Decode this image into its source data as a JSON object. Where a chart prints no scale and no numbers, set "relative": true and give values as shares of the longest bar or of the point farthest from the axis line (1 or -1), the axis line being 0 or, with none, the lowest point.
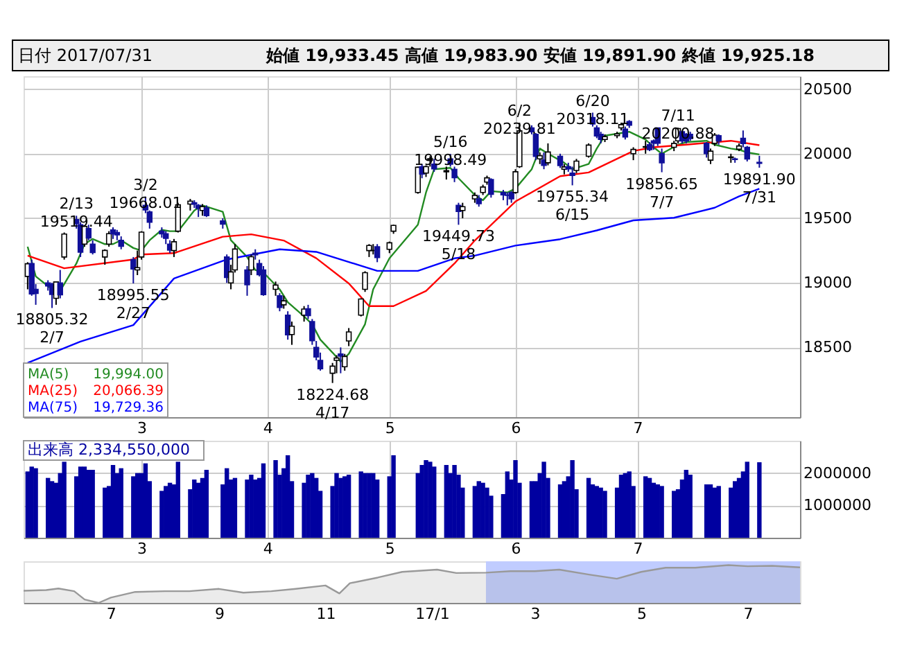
{
  "chart_data": [
    {
      "type": "candlestick",
      "title": "日付 2017/07/31",
      "subtitle": "始値 19,933.45 高値 19,983.90 安値 19,891.90 終値 19,925.18",
      "series": [
        {
          "type": "line",
          "name": "MA(5)",
          "color": "#228b22",
          "x": [
            "2017-02-01",
            "2017-02-03",
            "2017-02-07",
            "2017-02-09",
            "2017-02-13",
            "2017-02-15",
            "2017-02-17",
            "2017-02-20",
            "2017-02-22",
            "2017-02-24",
            "2017-02-27",
            "2017-03-01",
            "2017-03-03",
            "2017-03-06",
            "2017-03-08",
            "2017-03-10",
            "2017-03-14",
            "2017-03-16",
            "2017-03-21",
            "2017-03-23",
            "2017-03-27",
            "2017-03-29",
            "2017-03-31",
            "2017-04-04",
            "2017-04-06",
            "2017-04-10",
            "2017-04-12",
            "2017-04-14",
            "2017-04-17",
            "2017-04-19",
            "2017-04-21",
            "2017-04-25",
            "2017-04-27",
            "2017-05-01",
            "2017-05-08",
            "2017-05-10",
            "2017-05-12",
            "2017-05-16",
            "2017-05-18",
            "2017-05-22",
            "2017-05-24",
            "2017-05-26",
            "2017-05-30",
            "2017-06-01",
            "2017-06-05",
            "2017-06-07",
            "2017-06-09",
            "2017-06-13",
            "2017-06-15",
            "2017-06-19",
            "2017-06-21",
            "2017-06-23",
            "2017-06-27",
            "2017-06-29",
            "2017-07-03",
            "2017-07-05",
            "2017-07-07",
            "2017-07-11",
            "2017-07-13",
            "2017-07-18",
            "2017-07-20",
            "2017-07-24",
            "2017-07-26",
            "2017-07-28",
            "2017-07-31"
          ],
          "values": [
            19280,
            19050,
            18950,
            18937,
            19150,
            19300,
            19340,
            19300,
            19300,
            19330,
            19270,
            19250,
            19330,
            19410,
            19400,
            19400,
            19560,
            19600,
            19550,
            19330,
            19200,
            19100,
            19080,
            18950,
            18850,
            18740,
            18680,
            18560,
            18460,
            18390,
            18450,
            18680,
            18950,
            19190,
            19450,
            19700,
            19880,
            19890,
            19810,
            19680,
            19640,
            19710,
            19700,
            19730,
            19880,
            20040,
            20000,
            19930,
            19880,
            19920,
            20040,
            20140,
            20160,
            20170,
            20110,
            20050,
            20000,
            20070,
            20090,
            20100,
            20070,
            20040,
            20030,
            20010,
            19994
          ]
        },
        {
          "type": "line",
          "name": "MA(25)",
          "color": "#ff0000",
          "x": [
            "2017-02-01",
            "2017-02-10",
            "2017-02-27",
            "2017-03-01",
            "2017-03-09",
            "2017-03-21",
            "2017-03-28",
            "2017-04-05",
            "2017-04-13",
            "2017-04-21",
            "2017-04-26",
            "2017-05-02",
            "2017-05-10",
            "2017-05-17",
            "2017-05-22",
            "2017-06-01",
            "2017-06-12",
            "2017-06-19",
            "2017-06-30",
            "2017-07-05",
            "2017-07-13",
            "2017-07-24",
            "2017-07-31"
          ],
          "values": [
            19211,
            19113,
            19181,
            19220,
            19230,
            19357,
            19376,
            19328,
            19191,
            18996,
            18820,
            18820,
            18937,
            19150,
            19328,
            19630,
            19826,
            19855,
            20021,
            20050,
            20070,
            20100,
            20066.39
          ]
        },
        {
          "type": "line",
          "name": "MA(75)",
          "color": "#0000ff",
          "x": [
            "2017-02-01",
            "2017-02-14",
            "2017-02-27",
            "2017-03-09",
            "2017-03-22",
            "2017-04-04",
            "2017-04-13",
            "2017-04-28",
            "2017-05-08",
            "2017-05-17",
            "2017-05-22",
            "2017-06-01",
            "2017-06-12",
            "2017-06-21",
            "2017-06-30",
            "2017-07-10",
            "2017-07-20",
            "2017-07-26",
            "2017-07-31"
          ],
          "values": [
            18380,
            18546,
            18673,
            19034,
            19181,
            19260,
            19240,
            19093,
            19093,
            19190,
            19211,
            19289,
            19338,
            19406,
            19484,
            19504,
            19582,
            19670,
            19729.36
          ]
        },
        {
          "type": "candlestick",
          "colors": [
            "#ffffff",
            "#10109a",
            "#10109a",
            "#10109a",
            "#10109a",
            "#ffffff",
            "#10109a",
            "#ffffff",
            "#10109a",
            "#10109a",
            "#ffffff",
            "#10109a",
            "#10109a",
            "#ffffff",
            "#ffffff",
            "#10109a",
            "#10109a",
            "#10109a",
            "#10109a",
            "#ffffff",
            "#ffffff",
            "#10109a",
            "#10109a",
            "#10109a",
            "#10109a",
            "#10109a",
            "#ffffff",
            "#ffffff",
            "#ffffff",
            "#10109a",
            "#10109a",
            "#ffffff",
            "#10109a",
            "#10109a",
            "#10109a",
            "#ffffff",
            "#ffffff",
            "#10109a",
            "#ffffff",
            "#10109a",
            "#10109a",
            "#10109a",
            "#ffffff",
            "#10109a",
            "#ffffff",
            "#10109a",
            "#ffffff",
            "#ffffff",
            "#10109a",
            "#10109a",
            "#10109a",
            "#10109a",
            "#ffffff",
            "#ffffff",
            "#10109a",
            "#ffffff",
            "#ffffff",
            "#ffffff",
            "#ffffff",
            "#ffffff",
            "#ffffff",
            "#10109a",
            "#ffffff",
            "#ffffff",
            "#ffffff",
            "#10109a",
            "#ffffff",
            "#ffffff",
            "#10109a",
            "#ffffff",
            "#10109a",
            "#10109a",
            "#10109a",
            "#ffffff",
            "#ffffff",
            "#10109a",
            "#ffffff",
            "#ffffff",
            "#10109a",
            "#10109a",
            "#10109a",
            "#10109a",
            "#ffffff",
            "#ffffff",
            "#10109a",
            "#10109a",
            "#ffffff",
            "#10109a",
            "#ffffff",
            "#10109a",
            "#ffffff",
            "#10109a",
            "#10109a",
            "#ffffff",
            "#ffffff",
            "#10109a",
            "#10109a",
            "#10109a",
            "#ffffff",
            "#ffffff",
            "#ffffff",
            "#10109a",
            "#10109a",
            "#ffffff",
            "#ffffff",
            "#10109a",
            "#10109a",
            "#10109a",
            "#10109a",
            "#ffffff",
            "#ffffff",
            "#10109a",
            "#10109a",
            "#10109a",
            "#10109a",
            "#ffffff",
            "#ffffff",
            "#10109a",
            "#ffffff",
            "#10109a",
            "#ffffff",
            "#10109a",
            "#10109a",
            "#10109a"
          ],
          "x": [
            "2017-02-01",
            "2017-02-02",
            "2017-02-03",
            "2017-02-06",
            "2017-02-07",
            "2017-02-08",
            "2017-02-09",
            "2017-02-10",
            "2017-02-13",
            "2017-02-14",
            "2017-02-15",
            "2017-02-16",
            "2017-02-17",
            "2017-02-20",
            "2017-02-21",
            "2017-02-22",
            "2017-02-23",
            "2017-02-24",
            "2017-02-27",
            "2017-02-28",
            "2017-03-01",
            "2017-03-02",
            "2017-03-03",
            "2017-03-06",
            "2017-03-07",
            "2017-03-08",
            "2017-03-09",
            "2017-03-10",
            "2017-03-13",
            "2017-03-14",
            "2017-03-15",
            "2017-03-16",
            "2017-03-17",
            "2017-03-21",
            "2017-03-22",
            "2017-03-23",
            "2017-03-24",
            "2017-03-27",
            "2017-03-28",
            "2017-03-29",
            "2017-03-30",
            "2017-03-31",
            "2017-04-03",
            "2017-04-04",
            "2017-04-05",
            "2017-04-06",
            "2017-04-07",
            "2017-04-10",
            "2017-04-11",
            "2017-04-12",
            "2017-04-13",
            "2017-04-14",
            "2017-04-17",
            "2017-04-18",
            "2017-04-19",
            "2017-04-20",
            "2017-04-21",
            "2017-04-24",
            "2017-04-25",
            "2017-04-26",
            "2017-04-27",
            "2017-04-28",
            "2017-05-01",
            "2017-05-02",
            "2017-05-08",
            "2017-05-09",
            "2017-05-10",
            "2017-05-11",
            "2017-05-12",
            "2017-05-15",
            "2017-05-16",
            "2017-05-17",
            "2017-05-18",
            "2017-05-19",
            "2017-05-22",
            "2017-05-23",
            "2017-05-24",
            "2017-05-25",
            "2017-05-26",
            "2017-05-29",
            "2017-05-30",
            "2017-05-31",
            "2017-06-01",
            "2017-06-02",
            "2017-06-05",
            "2017-06-06",
            "2017-06-07",
            "2017-06-08",
            "2017-06-09",
            "2017-06-12",
            "2017-06-13",
            "2017-06-14",
            "2017-06-15",
            "2017-06-16",
            "2017-06-19",
            "2017-06-20",
            "2017-06-21",
            "2017-06-22",
            "2017-06-23",
            "2017-06-26",
            "2017-06-27",
            "2017-06-28",
            "2017-06-29",
            "2017-06-30",
            "2017-07-03",
            "2017-07-04",
            "2017-07-05",
            "2017-07-06",
            "2017-07-07",
            "2017-07-10",
            "2017-07-11",
            "2017-07-12",
            "2017-07-13",
            "2017-07-14",
            "2017-07-18",
            "2017-07-19",
            "2017-07-20",
            "2017-07-21",
            "2017-07-24",
            "2017-07-25",
            "2017-07-26",
            "2017-07-27",
            "2017-07-28",
            "2017-07-31"
          ],
          "ohlc": [
            [
              19050,
              19160,
              18950,
              19148
            ],
            [
              19150,
              19180,
              18900,
              18914
            ],
            [
              18950,
              18990,
              18830,
              18918
            ],
            [
              19000,
              19020,
              18940,
              18976
            ],
            [
              18990,
              19000,
              18805.32,
              18910
            ],
            [
              18880,
              19010,
              18830,
              19007
            ],
            [
              19000,
              19100,
              18880,
              18907
            ],
            [
              19200,
              19390,
              19180,
              19378
            ],
            [
              19490,
              19519.44,
              19420,
              19459
            ],
            [
              19450,
              19470,
              19200,
              19238
            ],
            [
              19300,
              19440,
              19280,
              19437
            ],
            [
              19420,
              19450,
              19330,
              19347
            ],
            [
              19300,
              19330,
              19220,
              19234
            ],
            [
              19200,
              19260,
              19140,
              19251
            ],
            [
              19300,
              19400,
              19280,
              19381
            ],
            [
              19410,
              19430,
              19340,
              19379
            ],
            [
              19390,
              19410,
              19330,
              19371
            ],
            [
              19330,
              19360,
              19260,
              19283
            ],
            [
              19180,
              19200,
              18995.55,
              19107
            ],
            [
              19100,
              19250,
              19060,
              19118
            ],
            [
              19200,
              19400,
              19180,
              19393
            ],
            [
              19600,
              19668.01,
              19540,
              19564
            ],
            [
              19550,
              19560,
              19420,
              19469
            ],
            [
              19400,
              19430,
              19350,
              19379
            ],
            [
              19380,
              19400,
              19300,
              19344
            ],
            [
              19300,
              19330,
              19230,
              19254
            ],
            [
              19250,
              19340,
              19200,
              19318
            ],
            [
              19400,
              19620,
              19390,
              19604
            ],
            [
              19610,
              19650,
              19560,
              19633
            ],
            [
              19620,
              19640,
              19580,
              19609
            ],
            [
              19600,
              19610,
              19510,
              19577
            ],
            [
              19560,
              19610,
              19520,
              19590
            ],
            [
              19580,
              19600,
              19510,
              19521
            ],
            [
              19480,
              19500,
              19420,
              19455
            ],
            [
              19200,
              19220,
              19000,
              19041
            ],
            [
              19000,
              19140,
              18950,
              19085
            ],
            [
              19100,
              19300,
              19080,
              19262
            ],
            [
              19100,
              19130,
              18900,
              18985
            ],
            [
              19100,
              19220,
              19060,
              19202
            ],
            [
              19230,
              19260,
              19180,
              19217
            ],
            [
              19150,
              19180,
              19050,
              19063
            ],
            [
              19100,
              19130,
              18900,
              18909
            ],
            [
              18950,
              19010,
              18900,
              18983
            ],
            [
              18900,
              18920,
              18780,
              18810
            ],
            [
              18830,
              18900,
              18800,
              18861
            ],
            [
              18750,
              18780,
              18560,
              18597
            ],
            [
              18600,
              18700,
              18520,
              18664
            ],
            [
              18750,
              18820,
              18700,
              18797
            ],
            [
              18800,
              18830,
              18720,
              18747
            ],
            [
              18700,
              18720,
              18520,
              18552
            ],
            [
              18500,
              18550,
              18400,
              18426
            ],
            [
              18400,
              18460,
              18320,
              18335
            ],
            [
              18300,
              18380,
              18224.68,
              18355
            ],
            [
              18400,
              18440,
              18300,
              18418
            ],
            [
              18450,
              18500,
              18300,
              18432
            ],
            [
              18350,
              18450,
              18320,
              18430
            ],
            [
              18550,
              18650,
              18510,
              18620
            ],
            [
              18750,
              18880,
              18740,
              18875
            ],
            [
              18950,
              19090,
              18930,
              19079
            ],
            [
              19250,
              19300,
              19200,
              19289
            ],
            [
              19250,
              19300,
              19220,
              19251
            ],
            [
              19280,
              19300,
              19160,
              19196
            ],
            [
              19260,
              19320,
              19230,
              19310
            ],
            [
              19400,
              19450,
              19380,
              19445
            ],
            [
              19700,
              19900,
              19690,
              19895
            ],
            [
              19900,
              19920,
              19810,
              19843
            ],
            [
              19850,
              19910,
              19820,
              19900
            ],
            [
              19950,
              19980,
              19900,
              19961
            ],
            [
              19920,
              19960,
              19860,
              19883
            ],
            [
              19860,
              19900,
              19800,
              19869
            ],
            [
              19960,
              19998.49,
              19900,
              19919
            ],
            [
              19880,
              19900,
              19780,
              19814
            ],
            [
              19600,
              19620,
              19449.73,
              19553
            ],
            [
              19560,
              19620,
              19500,
              19590
            ],
            [
              19650,
              19700,
              19620,
              19678
            ],
            [
              19650,
              19680,
              19590,
              19613
            ],
            [
              19700,
              19760,
              19680,
              19742
            ],
            [
              19780,
              19830,
              19760,
              19813
            ],
            [
              19800,
              19810,
              19660,
              19686
            ],
            [
              19700,
              19720,
              19640,
              19682
            ],
            [
              19680,
              19700,
              19600,
              19677
            ],
            [
              19700,
              19710,
              19620,
              19650
            ],
            [
              19700,
              19880,
              19690,
              19860
            ],
            [
              19900,
              20239.81,
              19890,
              20177
            ],
            [
              20200,
              20220,
              20150,
              20170
            ],
            [
              20150,
              20160,
              19950,
              19979
            ],
            [
              19960,
              20010,
              19920,
              19984
            ],
            [
              19950,
              20010,
              19880,
              19909
            ],
            [
              19930,
              20080,
              19910,
              20013
            ],
            [
              19980,
              20000,
              19890,
              19908
            ],
            [
              19880,
              19920,
              19840,
              19898
            ],
            [
              19900,
              19930,
              19860,
              19883
            ],
            [
              19850,
              19900,
              19755.34,
              19831
            ],
            [
              19870,
              19960,
              19850,
              19943
            ],
            [
              19980,
              20080,
              19970,
              20067
            ],
            [
              20280,
              20318.11,
              20210,
              20230
            ],
            [
              20200,
              20220,
              20120,
              20138
            ],
            [
              20150,
              20170,
              20080,
              20110
            ],
            [
              20110,
              20150,
              20090,
              20132
            ],
            [
              20140,
              20170,
              20120,
              20153
            ],
            [
              20200,
              20240,
              20180,
              20225
            ],
            [
              20190,
              20210,
              20110,
              20130
            ],
            [
              20250,
              20260,
              20200,
              20220
            ],
            [
              20000,
              20050,
              19950,
              20033
            ],
            [
              20050,
              20100,
              20000,
              20055
            ],
            [
              20070,
              20090,
              20020,
              20032
            ],
            [
              20100,
              20110,
              20030,
              20081
            ],
            [
              20200,
              20200,
              20060,
              20081
            ],
            [
              20000,
              20040,
              19856.65,
              19929
            ],
            [
              20050,
              20100,
              20020,
              20080
            ],
            [
              20100,
              20200.88,
              20080,
              20195
            ],
            [
              20170,
              20180,
              20080,
              20098
            ],
            [
              20150,
              20160,
              20080,
              20099
            ],
            [
              20150,
              20170,
              20100,
              20118
            ],
            [
              20080,
              20090,
              19970,
              20000
            ],
            [
              19950,
              20040,
              19920,
              20020
            ],
            [
              20080,
              20160,
              20060,
              20144
            ],
            [
              20140,
              20150,
              20070,
              20099
            ],
            [
              19970,
              20000,
              19930,
              19975
            ],
            [
              19960,
              19970,
              19930,
              19955
            ],
            [
              20035,
              20080,
              20020,
              20060
            ],
            [
              20120,
              20180,
              20050,
              20079
            ],
            [
              20050,
              20060,
              19940,
              19959
            ],
            [
              19933.45,
              19983.9,
              19891.9,
              19925.18
            ]
          ]
        }
      ],
      "annotations": [
        "19,994.00",
        "20,066.39",
        "19,729.36",
        {
          "text": "2/13\n19519.44",
          "x": "2017-02-13",
          "y": 19519.44
        },
        {
          "text": "18805.32\n2/7",
          "x": "2017-02-07",
          "y": 18805.32
        },
        {
          "text": "18995.55\n2/27",
          "x": "2017-02-27",
          "y": 18995.55
        },
        {
          "text": "3/2\n19668.01",
          "x": "2017-03-02",
          "y": 19668.01
        },
        {
          "text": "18224.68\n4/17",
          "x": "2017-04-17",
          "y": 18224.68
        },
        {
          "text": "5/16\n19998.49",
          "x": "2017-05-16",
          "y": 19998.49
        },
        {
          "text": "19449.73\n5/18",
          "x": "2017-05-18",
          "y": 19449.73
        },
        {
          "text": "6/2\n20239.81",
          "x": "2017-06-02",
          "y": 20239.81
        },
        {
          "text": "19755.34\n6/15",
          "x": "2017-06-15",
          "y": 19755.34
        },
        {
          "text": "6/20\n20318.11",
          "x": "2017-06-20",
          "y": 20318.11
        },
        {
          "text": "19856.65\n7/7",
          "x": "2017-07-07",
          "y": 19856.65
        },
        {
          "text": "7/11\n20200.88",
          "x": "2017-07-11",
          "y": 20200.88
        },
        {
          "text": "19891.90\n7/31",
          "x": "2017-07-31",
          "y": 19891.9
        }
      ],
      "xlim": [
        "2017-01-31",
        "2017-08-10"
      ],
      "xticks": [
        {
          "value": "2017-03-01",
          "label": "3"
        },
        {
          "value": "2017-04-01",
          "label": "4"
        },
        {
          "value": "2017-05-01",
          "label": "5"
        },
        {
          "value": "2017-06-01",
          "label": "6"
        },
        {
          "value": "2017-07-01",
          "label": "7"
        }
      ],
      "ylim": [
        17960,
        20600
      ],
      "yticks": [
        18500,
        19000,
        19500,
        20000,
        20500
      ],
      "grid": true,
      "legend": "bottom left"
    },
    {
      "type": "bar",
      "title": "出来高 2,334,550,000",
      "color": "#0000a0",
      "x": [
        "2017-02-01",
        "2017-02-02",
        "2017-02-03",
        "2017-02-06",
        "2017-02-07",
        "2017-02-08",
        "2017-02-09",
        "2017-02-10",
        "2017-02-13",
        "2017-02-14",
        "2017-02-15",
        "2017-02-16",
        "2017-02-17",
        "2017-02-20",
        "2017-02-21",
        "2017-02-22",
        "2017-02-23",
        "2017-02-24",
        "2017-02-27",
        "2017-02-28",
        "2017-03-01",
        "2017-03-02",
        "2017-03-03",
        "2017-03-06",
        "2017-03-07",
        "2017-03-08",
        "2017-03-09",
        "2017-03-10",
        "2017-03-13",
        "2017-03-14",
        "2017-03-15",
        "2017-03-16",
        "2017-03-17",
        "2017-03-21",
        "2017-03-22",
        "2017-03-23",
        "2017-03-24",
        "2017-03-27",
        "2017-03-28",
        "2017-03-29",
        "2017-03-30",
        "2017-03-31",
        "2017-04-03",
        "2017-04-04",
        "2017-04-05",
        "2017-04-06",
        "2017-04-07",
        "2017-04-10",
        "2017-04-11",
        "2017-04-12",
        "2017-04-13",
        "2017-04-14",
        "2017-04-17",
        "2017-04-18",
        "2017-04-19",
        "2017-04-20",
        "2017-04-21",
        "2017-04-24",
        "2017-04-25",
        "2017-04-26",
        "2017-04-27",
        "2017-04-28",
        "2017-05-01",
        "2017-05-02",
        "2017-05-08",
        "2017-05-09",
        "2017-05-10",
        "2017-05-11",
        "2017-05-12",
        "2017-05-15",
        "2017-05-16",
        "2017-05-17",
        "2017-05-18",
        "2017-05-19",
        "2017-05-22",
        "2017-05-23",
        "2017-05-24",
        "2017-05-25",
        "2017-05-26",
        "2017-05-29",
        "2017-05-30",
        "2017-05-31",
        "2017-06-01",
        "2017-06-02",
        "2017-06-05",
        "2017-06-06",
        "2017-06-07",
        "2017-06-08",
        "2017-06-09",
        "2017-06-12",
        "2017-06-13",
        "2017-06-14",
        "2017-06-15",
        "2017-06-16",
        "2017-06-19",
        "2017-06-20",
        "2017-06-21",
        "2017-06-22",
        "2017-06-23",
        "2017-06-26",
        "2017-06-27",
        "2017-06-28",
        "2017-06-29",
        "2017-06-30",
        "2017-07-03",
        "2017-07-04",
        "2017-07-05",
        "2017-07-06",
        "2017-07-07",
        "2017-07-10",
        "2017-07-11",
        "2017-07-12",
        "2017-07-13",
        "2017-07-14",
        "2017-07-18",
        "2017-07-19",
        "2017-07-20",
        "2017-07-21",
        "2017-07-24",
        "2017-07-25",
        "2017-07-26",
        "2017-07-27",
        "2017-07-28",
        "2017-07-31"
      ],
      "values": [
        2050000,
        2200000,
        2150000,
        1850000,
        1750000,
        1700000,
        2000000,
        2350000,
        1900000,
        2200000,
        2200000,
        2100000,
        2100000,
        1550000,
        1600000,
        2250000,
        2000000,
        2150000,
        1900000,
        2000000,
        2000000,
        2300000,
        1750000,
        1450000,
        1600000,
        1700000,
        1650000,
        2350000,
        1500000,
        1800000,
        1700000,
        1850000,
        2100000,
        1650000,
        2150000,
        1800000,
        1850000,
        1800000,
        1950000,
        1800000,
        1850000,
        2300000,
        2400000,
        1950000,
        2150000,
        2550000,
        1750000,
        1700000,
        1950000,
        2000000,
        1850000,
        1450000,
        1600000,
        2000000,
        1850000,
        1900000,
        1950000,
        2050000,
        2000000,
        2000000,
        2000000,
        1800000,
        1900000,
        2550000,
        2000000,
        2250000,
        2400000,
        2350000,
        2200000,
        2250000,
        2000000,
        2250000,
        1950000,
        1550000,
        1600000,
        1750000,
        1700000,
        1550000,
        1300000,
        1350000,
        2050000,
        1800000,
        2400000,
        1700000,
        1750000,
        1750000,
        2000000,
        2350000,
        1850000,
        1650000,
        1750000,
        1900000,
        2400000,
        1500000,
        1850000,
        1650000,
        1600000,
        1550000,
        1450000,
        1550000,
        1950000,
        2000000,
        2050000,
        1600000,
        1900000,
        1850000,
        1700000,
        1650000,
        1600000,
        1450000,
        1500000,
        1800000,
        2100000,
        1950000,
        1650000,
        1650000,
        1550000,
        1600000,
        1550000,
        1750000,
        1850000,
        2050000,
        2350000,
        2334550
      ],
      "xlim": [
        "2017-01-31",
        "2017-08-10"
      ],
      "xticks": [
        {
          "value": "2017-03-01",
          "label": "3"
        },
        {
          "value": "2017-04-01",
          "label": "4"
        },
        {
          "value": "2017-05-01",
          "label": "5"
        },
        {
          "value": "2017-06-01",
          "label": "6"
        },
        {
          "value": "2017-07-01",
          "label": "7"
        }
      ],
      "ylim": [
        0,
        3000000
      ],
      "yticks": [
        1000000,
        2000000
      ],
      "grid": true
    },
    {
      "type": "area",
      "relative": true,
      "x": [
        "2016-05-12",
        "2016-05-25",
        "2016-06-01",
        "2016-06-10",
        "2016-06-16",
        "2016-06-24",
        "2016-07-01",
        "2016-07-15",
        "2016-08-01",
        "2016-08-15",
        "2016-09-01",
        "2016-09-15",
        "2016-10-01",
        "2016-10-15",
        "2016-11-01",
        "2016-11-09",
        "2016-11-15",
        "2016-12-01",
        "2016-12-15",
        "2017-01-04",
        "2017-01-15",
        "2017-02-01",
        "2017-02-15",
        "2017-03-01",
        "2017-03-15",
        "2017-04-01",
        "2017-04-17",
        "2017-05-01",
        "2017-05-15",
        "2017-06-01",
        "2017-06-20",
        "2017-07-01",
        "2017-07-15",
        "2017-07-31"
      ],
      "series": [
        {
          "color": "#999999",
          "values": [
            0.32,
            0.34,
            0.38,
            0.31,
            0.09,
            0,
            0.14,
            0.29,
            0.31,
            0.31,
            0.37,
            0.27,
            0.31,
            0.37,
            0.46,
            0.25,
            0.52,
            0.67,
            0.82,
            0.88,
            0.79,
            0.8,
            0.84,
            0.84,
            0.88,
            0.75,
            0.64,
            0.82,
            0.93,
            0.93,
            1,
            0.97,
            0.98,
            0.94
          ]
        }
      ],
      "bands": [
        {
          "axis": "x",
          "from": "2017-02-01",
          "to": "2017-07-31",
          "color": "#c0ccff"
        }
      ],
      "xlim": [
        "2016-05-12",
        "2017-07-31"
      ],
      "xticks": [
        {
          "value": "2016-07-01",
          "label": "7"
        },
        {
          "value": "2016-09-01",
          "label": "9"
        },
        {
          "value": "2016-11-01",
          "label": "11"
        },
        {
          "value": "2017-01-01",
          "label": "17/1"
        },
        {
          "value": "2017-03-01",
          "label": "3"
        },
        {
          "value": "2017-05-01",
          "label": "5"
        },
        {
          "value": "2017-07-01",
          "label": "7"
        }
      ]
    }
  ]
}
